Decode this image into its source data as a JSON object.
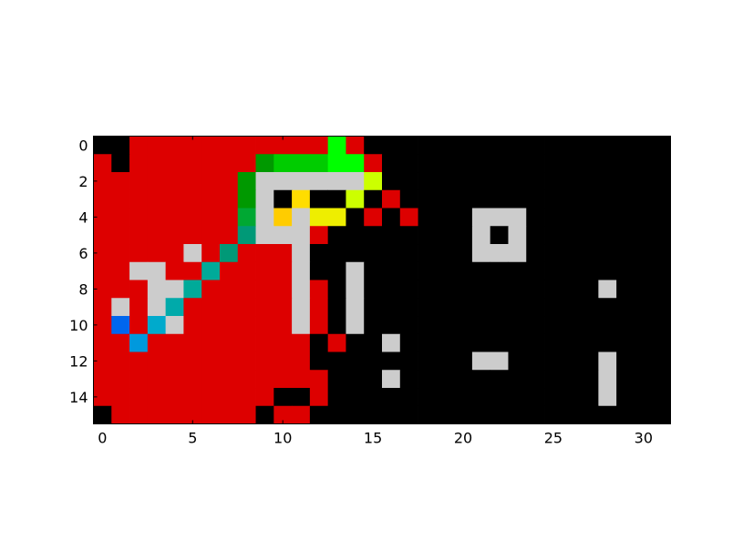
{
  "chart_data": {
    "type": "heatmap",
    "title": "",
    "xlabel": "",
    "ylabel": "",
    "xlim": [
      -0.5,
      31.5
    ],
    "ylim": [
      15.5,
      -0.5
    ],
    "grid": false,
    "x_ticks": [
      0,
      5,
      10,
      15,
      20,
      25,
      30
    ],
    "y_ticks": [
      0,
      2,
      4,
      6,
      8,
      10,
      12,
      14
    ],
    "colors": {
      "k": "#000000",
      "R": "#dd0000",
      "L": "#cccccc",
      "G1": "#00ff00",
      "G2": "#00cc00",
      "G3": "#009900",
      "G4": "#00a833",
      "Ly": "#88ff22",
      "Yg": "#ccff00",
      "Y": "#eeee00",
      "Go": "#ffcc00",
      "Yd": "#ffdd00",
      "T1": "#009977",
      "T2": "#00aa99",
      "T3": "#00aaaa",
      "T4": "#00aacc",
      "B1": "#0099dd",
      "B2": "#0066ee"
    },
    "rows": [
      "k k R R R R R R R R R R R G1 R k k k k k k k k k k k k k k k k k",
      "R k R R R R R R R G3 G2 G2 G2 G1 G1 R k k k k k k k k k k k k k k k k",
      "R R R R R R R R G3 L L L L L L Yg k k k k k k k k k k k k k k k k",
      "R R R R R R R R G3 L k Yd k k Yg k R k k k k k k k k k k k k k k k",
      "R R R R R R R R G4 L Go L Y Y k R k R k k k L L L k k k k k k k k",
      "R R R R R R R R T1 L L L R k k k k k k k k L k L k k k k k k k k",
      "R R R R R L R T1 R R R L k k k k k k k k k L L L k k k k k k k k",
      "R R L L R R T2 R R R R L k k L k k k k k k k k k k k k k k k k k",
      "R R R L L T2 R R R R R L R k L k k k k k k k k k k k k k L k k k",
      "R L R L T3 R R R R R R L R k L k k k k k k k k k k k k k k k k k",
      "R B2 R T4 L R R R R R R L R k L k k k k k k k k k k k k k k k k k",
      "R R B1 R R R R R R R R R k R k k L k k k k k k k k k k k k k k k",
      "R R R R R R R R R R R R k k k k k k k k k L L k k k k k L k k k",
      "R R R R R R R R R R R R R k k k L k k k k k k k k k k k L k k k",
      "R R R R R R R R R R k k R k k k k k k k k k k k k k k k L k k k",
      "k R R R R R R R R k R R k k k k k k k k k k k k k k k k k k k k"
    ]
  }
}
